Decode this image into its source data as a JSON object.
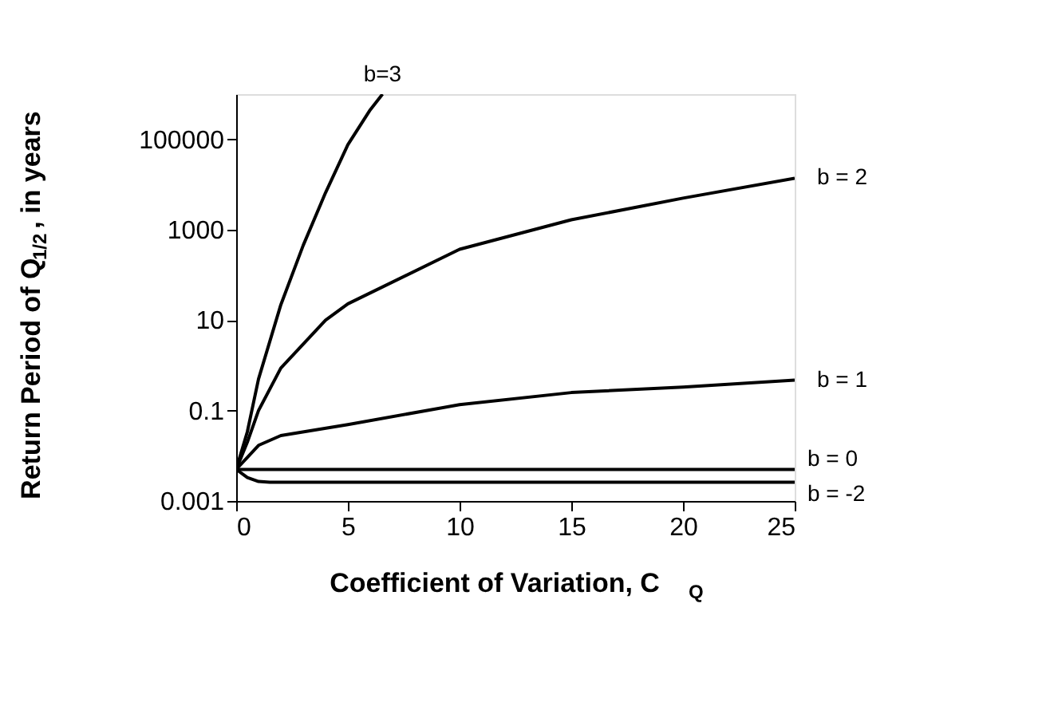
{
  "chart_data": {
    "type": "line",
    "xlabel": "Coefficient of Variation, C$_{Q}$",
    "ylabel": "Return Period of Q$_{1/2}$, in years",
    "xlim": [
      0,
      25
    ],
    "xticks": [
      0,
      5,
      10,
      15,
      20,
      25
    ],
    "ylim": [
      0.001,
      1000000
    ],
    "yticks": [
      0.001,
      0.1,
      10,
      1000,
      100000
    ],
    "log": true,
    "marker": "none",
    "line_style": "solid",
    "series": [
      {
        "name": "b=3",
        "color": "#000000",
        "x": [
          0,
          0.5,
          1,
          2,
          3,
          4,
          5,
          6,
          6.55
        ],
        "values": [
          0.005,
          0.034,
          0.5,
          22,
          450,
          6600,
          76000,
          450000,
          1000000
        ]
      },
      {
        "name": "b = 2",
        "color": "#000000",
        "x": [
          0,
          0.5,
          1,
          2,
          4,
          5,
          10,
          15,
          20,
          25
        ],
        "values": [
          0.005,
          0.02,
          0.1,
          0.87,
          10,
          23,
          370,
          1660,
          5000,
          13800
        ]
      },
      {
        "name": "b = 1",
        "color": "#000000",
        "x": [
          0,
          1,
          2,
          5,
          10,
          15,
          20,
          25
        ],
        "values": [
          0.005,
          0.017,
          0.028,
          0.049,
          0.135,
          0.25,
          0.33,
          0.47
        ]
      },
      {
        "name": "b = 0",
        "color": "#000000",
        "x": [
          0,
          25
        ],
        "values": [
          0.005,
          0.005
        ]
      },
      {
        "name": "b = -2",
        "color": "#000000",
        "x": [
          0,
          0.5,
          1,
          1.5,
          25
        ],
        "values": [
          0.005,
          0.0033,
          0.0027,
          0.0026,
          0.0026
        ]
      }
    ]
  }
}
